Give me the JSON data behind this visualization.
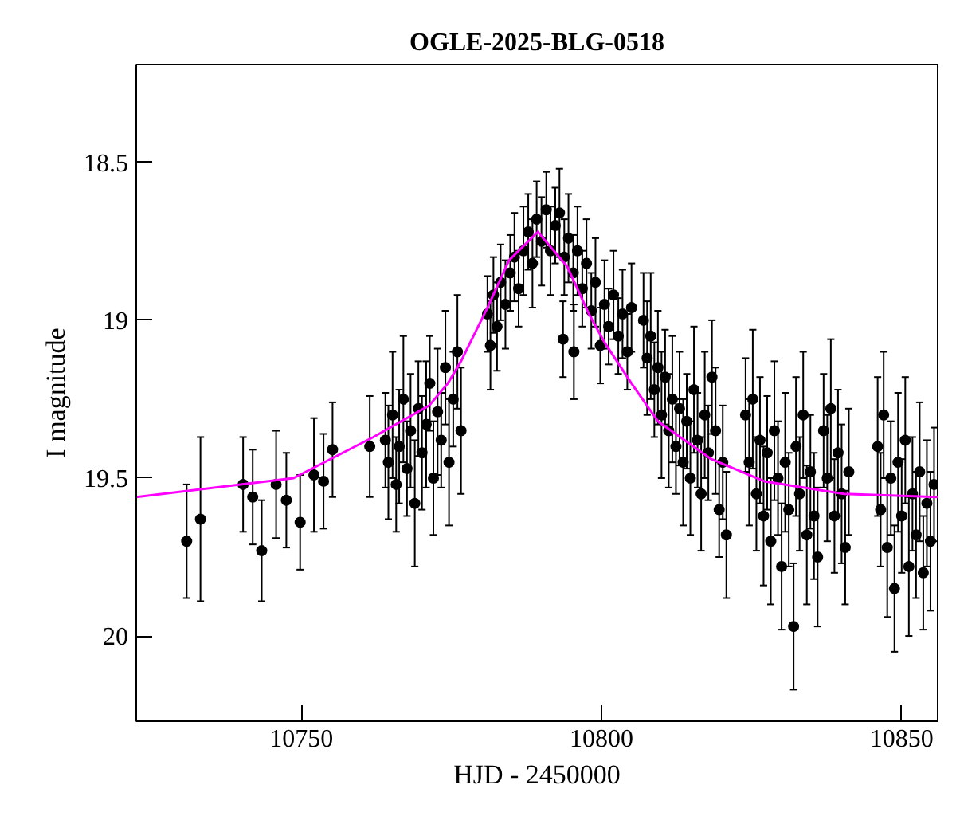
{
  "chart_data": {
    "type": "scatter",
    "title": "OGLE-2025-BLG-0518",
    "xlabel": "HJD - 2450000",
    "ylabel": "I magnitude",
    "xlim": [
      10722.5,
      10856
    ],
    "ylim": [
      20.27,
      18.19
    ],
    "xticks": [
      10750,
      10800,
      10850
    ],
    "yticks": [
      18.5,
      19,
      19.5,
      20
    ],
    "grid": false,
    "series": [
      {
        "color": "#000000",
        "marker": "circle",
        "x": [
          10730.9,
          10733.2,
          10740.3,
          10741.9,
          10743.4,
          10745.8,
          10747.5,
          10749.8,
          10752.1,
          10753.7,
          10755.2,
          10761.4,
          10764.0,
          10764.5,
          10765.2,
          10765.8,
          10766.3,
          10767.0,
          10767.6,
          10768.2,
          10768.9,
          10769.5,
          10770.1,
          10770.8,
          10771.4,
          10772.0,
          10772.7,
          10773.3,
          10774.0,
          10774.6,
          10775.3,
          10776.0,
          10776.6,
          10781.0,
          10781.5,
          10782.0,
          10782.6,
          10783.2,
          10784.0,
          10784.8,
          10785.5,
          10786.2,
          10787.0,
          10787.8,
          10788.5,
          10789.2,
          10790.0,
          10790.8,
          10791.5,
          10792.3,
          10793.0,
          10793.6,
          10793.8,
          10794.5,
          10795.3,
          10795.4,
          10796.0,
          10796.8,
          10797.5,
          10798.3,
          10799.0,
          10799.8,
          10800.5,
          10801.2,
          10802.0,
          10802.8,
          10803.5,
          10804.3,
          10805.0,
          10807.0,
          10807.6,
          10808.2,
          10808.8,
          10809.4,
          10810.0,
          10810.6,
          10811.2,
          10811.8,
          10812.4,
          10813.0,
          10813.6,
          10814.2,
          10814.8,
          10815.4,
          10816.0,
          10816.6,
          10817.2,
          10817.8,
          10818.4,
          10819.0,
          10819.6,
          10820.2,
          10820.8,
          10824.0,
          10824.6,
          10825.2,
          10825.8,
          10826.4,
          10827.0,
          10827.6,
          10828.2,
          10828.8,
          10829.4,
          10830.0,
          10830.6,
          10831.2,
          10832.0,
          10832.4,
          10833.0,
          10833.6,
          10834.2,
          10834.8,
          10835.4,
          10836.0,
          10837.0,
          10837.6,
          10838.2,
          10838.8,
          10839.4,
          10840.0,
          10840.6,
          10841.2,
          10846.0,
          10846.5,
          10847.0,
          10847.6,
          10848.2,
          10848.8,
          10849.4,
          10850.0,
          10850.6,
          10851.2,
          10851.8,
          10852.4,
          10853.0,
          10853.6,
          10854.2,
          10854.8,
          10855.4
        ],
        "values": [
          19.7,
          19.63,
          19.52,
          19.56,
          19.73,
          19.52,
          19.57,
          19.64,
          19.49,
          19.51,
          19.41,
          19.4,
          19.38,
          19.45,
          19.3,
          19.52,
          19.4,
          19.25,
          19.47,
          19.35,
          19.58,
          19.28,
          19.42,
          19.33,
          19.2,
          19.5,
          19.29,
          19.38,
          19.15,
          19.45,
          19.25,
          19.1,
          19.35,
          18.98,
          19.08,
          18.92,
          19.02,
          18.88,
          18.95,
          18.85,
          18.8,
          18.9,
          18.78,
          18.72,
          18.82,
          18.68,
          18.75,
          18.65,
          18.78,
          18.7,
          18.66,
          19.06,
          18.8,
          18.74,
          18.85,
          19.1,
          18.78,
          18.9,
          18.82,
          18.97,
          18.88,
          19.08,
          18.95,
          19.02,
          18.92,
          19.05,
          18.98,
          19.1,
          18.96,
          19.0,
          19.12,
          19.05,
          19.22,
          19.15,
          19.3,
          19.18,
          19.35,
          19.25,
          19.4,
          19.28,
          19.45,
          19.32,
          19.5,
          19.22,
          19.38,
          19.55,
          19.3,
          19.42,
          19.18,
          19.35,
          19.6,
          19.45,
          19.68,
          19.3,
          19.45,
          19.25,
          19.55,
          19.38,
          19.62,
          19.42,
          19.7,
          19.35,
          19.5,
          19.78,
          19.45,
          19.6,
          19.97,
          19.4,
          19.55,
          19.3,
          19.68,
          19.48,
          19.62,
          19.75,
          19.35,
          19.5,
          19.28,
          19.62,
          19.42,
          19.55,
          19.72,
          19.48,
          19.4,
          19.6,
          19.3,
          19.72,
          19.5,
          19.85,
          19.45,
          19.62,
          19.38,
          19.78,
          19.55,
          19.68,
          19.48,
          19.8,
          19.58,
          19.7,
          19.52
        ],
        "errors": [
          0.18,
          0.26,
          0.15,
          0.15,
          0.16,
          0.17,
          0.15,
          0.15,
          0.18,
          0.15,
          0.15,
          0.16,
          0.15,
          0.18,
          0.2,
          0.15,
          0.18,
          0.2,
          0.15,
          0.18,
          0.2,
          0.15,
          0.18,
          0.2,
          0.15,
          0.18,
          0.2,
          0.15,
          0.18,
          0.2,
          0.15,
          0.18,
          0.2,
          0.12,
          0.14,
          0.12,
          0.14,
          0.12,
          0.14,
          0.12,
          0.14,
          0.12,
          0.14,
          0.12,
          0.14,
          0.12,
          0.14,
          0.12,
          0.14,
          0.12,
          0.14,
          0.12,
          0.12,
          0.14,
          0.12,
          0.15,
          0.14,
          0.12,
          0.14,
          0.12,
          0.14,
          0.12,
          0.14,
          0.12,
          0.14,
          0.12,
          0.14,
          0.12,
          0.14,
          0.15,
          0.18,
          0.2,
          0.15,
          0.18,
          0.2,
          0.15,
          0.18,
          0.2,
          0.15,
          0.18,
          0.2,
          0.15,
          0.18,
          0.2,
          0.15,
          0.18,
          0.2,
          0.15,
          0.18,
          0.2,
          0.15,
          0.18,
          0.2,
          0.18,
          0.2,
          0.22,
          0.18,
          0.2,
          0.22,
          0.18,
          0.2,
          0.22,
          0.18,
          0.2,
          0.22,
          0.18,
          0.2,
          0.22,
          0.18,
          0.2,
          0.22,
          0.18,
          0.2,
          0.22,
          0.18,
          0.2,
          0.22,
          0.18,
          0.2,
          0.22,
          0.18,
          0.2,
          0.22,
          0.18,
          0.2,
          0.22,
          0.18,
          0.2,
          0.22,
          0.18,
          0.2,
          0.22,
          0.18,
          0.2,
          0.22,
          0.18,
          0.2,
          0.22,
          0.18
        ]
      },
      {
        "type": "line",
        "color": "#ff00ff",
        "x": [
          10722.5,
          10748.7,
          10762,
          10771.3,
          10774.4,
          10776.6,
          10781,
          10784.6,
          10789.4,
          10794.3,
          10797.9,
          10800.5,
          10805,
          10809.4,
          10818.3,
          10827.1,
          10840.4,
          10856
        ],
        "values": [
          19.56,
          19.5,
          19.37,
          19.27,
          19.2,
          19.13,
          18.96,
          18.81,
          18.72,
          18.83,
          18.98,
          19.07,
          19.2,
          19.32,
          19.44,
          19.51,
          19.55,
          19.56
        ]
      }
    ]
  }
}
